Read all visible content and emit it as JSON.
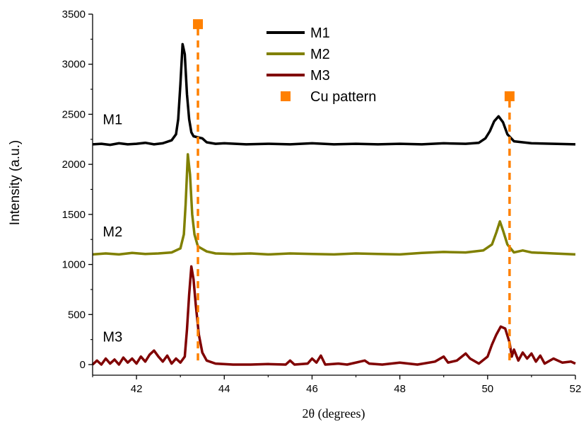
{
  "chart_data": {
    "type": "line",
    "title": "",
    "xlabel": "2θ (degrees)",
    "ylabel": "Intensity (a.u.)",
    "xlim": [
      41,
      52
    ],
    "ylim": [
      -100,
      3500
    ],
    "x_ticks": [
      42,
      44,
      46,
      48,
      50,
      52
    ],
    "y_ticks": [
      0,
      500,
      1000,
      1500,
      2000,
      2500,
      3000,
      3500
    ],
    "grid": false,
    "legend_position": "top-center",
    "series": [
      {
        "name": "M1",
        "color": "#000000",
        "style": "line",
        "points": [
          [
            41.0,
            2200
          ],
          [
            41.2,
            2205
          ],
          [
            41.4,
            2195
          ],
          [
            41.6,
            2210
          ],
          [
            41.8,
            2200
          ],
          [
            42.0,
            2205
          ],
          [
            42.2,
            2215
          ],
          [
            42.4,
            2200
          ],
          [
            42.6,
            2210
          ],
          [
            42.8,
            2240
          ],
          [
            42.9,
            2300
          ],
          [
            42.95,
            2450
          ],
          [
            43.0,
            2800
          ],
          [
            43.05,
            3200
          ],
          [
            43.1,
            3100
          ],
          [
            43.15,
            2700
          ],
          [
            43.2,
            2450
          ],
          [
            43.25,
            2320
          ],
          [
            43.3,
            2280
          ],
          [
            43.4,
            2270
          ],
          [
            43.5,
            2260
          ],
          [
            43.6,
            2220
          ],
          [
            43.8,
            2205
          ],
          [
            44.0,
            2210
          ],
          [
            44.5,
            2200
          ],
          [
            45.0,
            2205
          ],
          [
            45.5,
            2200
          ],
          [
            46.0,
            2210
          ],
          [
            46.5,
            2200
          ],
          [
            47.0,
            2205
          ],
          [
            47.5,
            2200
          ],
          [
            48.0,
            2205
          ],
          [
            48.5,
            2200
          ],
          [
            49.0,
            2210
          ],
          [
            49.5,
            2205
          ],
          [
            49.8,
            2215
          ],
          [
            49.95,
            2260
          ],
          [
            50.05,
            2330
          ],
          [
            50.15,
            2430
          ],
          [
            50.25,
            2480
          ],
          [
            50.35,
            2420
          ],
          [
            50.45,
            2300
          ],
          [
            50.6,
            2230
          ],
          [
            51.0,
            2210
          ],
          [
            51.5,
            2205
          ],
          [
            52.0,
            2200
          ]
        ]
      },
      {
        "name": "M2",
        "color": "#808000",
        "style": "line",
        "points": [
          [
            41.0,
            1100
          ],
          [
            41.3,
            1110
          ],
          [
            41.6,
            1100
          ],
          [
            41.9,
            1115
          ],
          [
            42.2,
            1105
          ],
          [
            42.5,
            1110
          ],
          [
            42.8,
            1120
          ],
          [
            43.0,
            1160
          ],
          [
            43.08,
            1300
          ],
          [
            43.12,
            1600
          ],
          [
            43.17,
            2100
          ],
          [
            43.22,
            1900
          ],
          [
            43.27,
            1500
          ],
          [
            43.32,
            1300
          ],
          [
            43.4,
            1180
          ],
          [
            43.6,
            1130
          ],
          [
            43.8,
            1110
          ],
          [
            44.2,
            1105
          ],
          [
            44.6,
            1110
          ],
          [
            45.0,
            1100
          ],
          [
            45.5,
            1110
          ],
          [
            46.0,
            1105
          ],
          [
            46.5,
            1100
          ],
          [
            47.0,
            1110
          ],
          [
            47.5,
            1105
          ],
          [
            48.0,
            1100
          ],
          [
            48.5,
            1115
          ],
          [
            49.0,
            1125
          ],
          [
            49.5,
            1120
          ],
          [
            49.9,
            1140
          ],
          [
            50.1,
            1200
          ],
          [
            50.2,
            1320
          ],
          [
            50.28,
            1430
          ],
          [
            50.35,
            1340
          ],
          [
            50.45,
            1200
          ],
          [
            50.6,
            1120
          ],
          [
            50.8,
            1140
          ],
          [
            51.0,
            1120
          ],
          [
            51.5,
            1110
          ],
          [
            52.0,
            1100
          ]
        ]
      },
      {
        "name": "M3",
        "color": "#800000",
        "style": "line",
        "points": [
          [
            41.0,
            0
          ],
          [
            41.1,
            40
          ],
          [
            41.2,
            0
          ],
          [
            41.3,
            60
          ],
          [
            41.4,
            10
          ],
          [
            41.5,
            50
          ],
          [
            41.6,
            0
          ],
          [
            41.7,
            70
          ],
          [
            41.8,
            20
          ],
          [
            41.9,
            60
          ],
          [
            42.0,
            10
          ],
          [
            42.1,
            80
          ],
          [
            42.2,
            30
          ],
          [
            42.3,
            100
          ],
          [
            42.4,
            140
          ],
          [
            42.5,
            80
          ],
          [
            42.6,
            30
          ],
          [
            42.7,
            90
          ],
          [
            42.8,
            10
          ],
          [
            42.9,
            60
          ],
          [
            43.0,
            20
          ],
          [
            43.1,
            80
          ],
          [
            43.15,
            350
          ],
          [
            43.2,
            700
          ],
          [
            43.25,
            980
          ],
          [
            43.3,
            850
          ],
          [
            43.35,
            600
          ],
          [
            43.42,
            300
          ],
          [
            43.5,
            120
          ],
          [
            43.6,
            40
          ],
          [
            43.8,
            10
          ],
          [
            44.2,
            0
          ],
          [
            44.6,
            0
          ],
          [
            45.0,
            5
          ],
          [
            45.4,
            0
          ],
          [
            45.5,
            40
          ],
          [
            45.6,
            0
          ],
          [
            45.9,
            10
          ],
          [
            46.0,
            60
          ],
          [
            46.1,
            20
          ],
          [
            46.2,
            90
          ],
          [
            46.3,
            0
          ],
          [
            46.6,
            10
          ],
          [
            46.8,
            0
          ],
          [
            47.2,
            40
          ],
          [
            47.3,
            10
          ],
          [
            47.6,
            0
          ],
          [
            48.0,
            20
          ],
          [
            48.4,
            0
          ],
          [
            48.8,
            30
          ],
          [
            49.0,
            80
          ],
          [
            49.1,
            20
          ],
          [
            49.3,
            40
          ],
          [
            49.5,
            110
          ],
          [
            49.6,
            60
          ],
          [
            49.8,
            10
          ],
          [
            50.0,
            80
          ],
          [
            50.1,
            200
          ],
          [
            50.2,
            300
          ],
          [
            50.3,
            380
          ],
          [
            50.4,
            360
          ],
          [
            50.5,
            220
          ],
          [
            50.55,
            80
          ],
          [
            50.6,
            150
          ],
          [
            50.7,
            40
          ],
          [
            50.8,
            120
          ],
          [
            50.9,
            60
          ],
          [
            51.0,
            110
          ],
          [
            51.1,
            30
          ],
          [
            51.2,
            90
          ],
          [
            51.3,
            10
          ],
          [
            51.5,
            60
          ],
          [
            51.7,
            20
          ],
          [
            51.9,
            30
          ],
          [
            52.0,
            10
          ]
        ]
      },
      {
        "name": "Cu pattern",
        "color": "#FF8000",
        "style": "dashed-stick",
        "points": [
          [
            43.4,
            3400
          ],
          [
            50.5,
            2680
          ]
        ]
      }
    ],
    "annotations": [
      {
        "text": "M1",
        "x": 41.2,
        "y": 2450
      },
      {
        "text": "M2",
        "x": 41.2,
        "y": 1330
      },
      {
        "text": "M3",
        "x": 41.2,
        "y": 280
      }
    ]
  }
}
